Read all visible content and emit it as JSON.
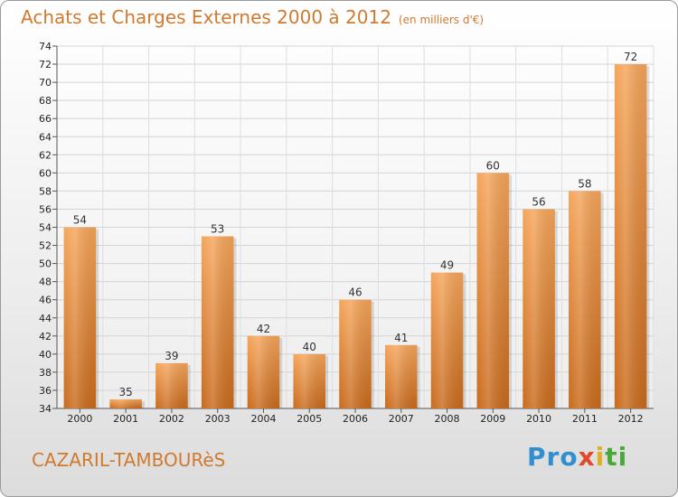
{
  "header": {
    "title": "Achats et Charges Externes 2000 à 2012",
    "subtitle": "(en milliers d'€)"
  },
  "footer": {
    "commune": "CAZARIL-TAMBOURèS",
    "logo": [
      "Pro",
      "x",
      "i",
      "ti"
    ]
  },
  "colors": {
    "bar_top": "#f5a55a",
    "bar_bottom": "#c96a1c",
    "accent": "#d07a30"
  },
  "chart_data": {
    "type": "bar",
    "title": "Achats et Charges Externes 2000 à 2012",
    "xlabel": "",
    "ylabel": "",
    "categories": [
      "2000",
      "2001",
      "2002",
      "2003",
      "2004",
      "2005",
      "2006",
      "2007",
      "2008",
      "2009",
      "2010",
      "2011",
      "2012"
    ],
    "values": [
      54,
      35,
      39,
      53,
      42,
      40,
      46,
      41,
      49,
      60,
      56,
      58,
      72
    ],
    "ylim": [
      34,
      74
    ],
    "yticks": [
      34,
      36,
      38,
      40,
      42,
      44,
      46,
      48,
      50,
      52,
      54,
      56,
      58,
      60,
      62,
      64,
      66,
      68,
      70,
      72,
      74
    ],
    "grid": true
  }
}
